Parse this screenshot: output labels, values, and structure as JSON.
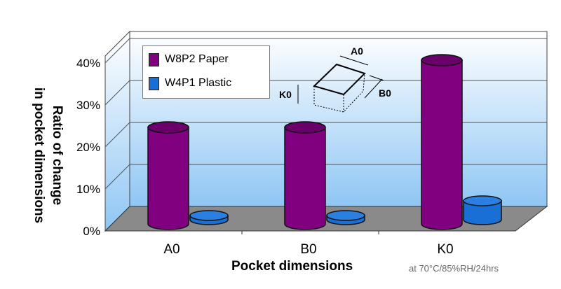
{
  "chart_data": {
    "type": "bar",
    "style": "3d-cylinder",
    "categories": [
      "A0",
      "B0",
      "K0"
    ],
    "series": [
      {
        "name": "W8P2 Paper",
        "values": [
          23,
          23,
          39
        ],
        "color": "#800080"
      },
      {
        "name": "W4P1 Plastic",
        "values": [
          1,
          1,
          4.5
        ],
        "color": "#1a6fd6"
      }
    ],
    "xlabel": "Pocket dimensions",
    "ylabel": [
      "Ratio of change",
      "in pocket dimensions"
    ],
    "yticks": [
      "0%",
      "10%",
      "20%",
      "30%",
      "40%"
    ],
    "ylim": [
      0,
      40
    ],
    "grid": true,
    "legend": "top-left",
    "note": "at 70°C/85%RH/24hrs",
    "inset_labels": [
      "A0",
      "B0",
      "K0"
    ]
  }
}
